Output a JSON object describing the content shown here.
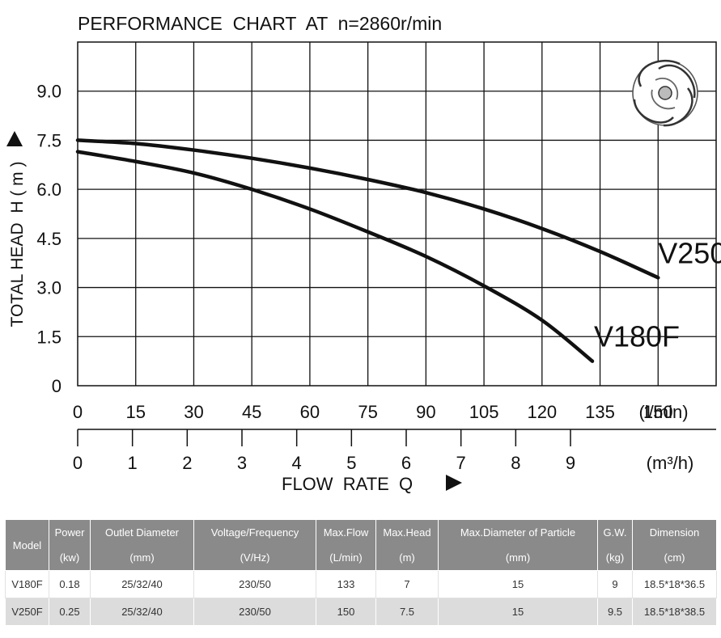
{
  "chart_data": {
    "type": "line",
    "title": "PERFORMANCE  CHART  AT  n=2860r/min",
    "ylabel": "TOTAL HEAD  H ( m )",
    "xlabel": "FLOW  RATE  Q",
    "x_unit_top": "(l/min)",
    "x_unit_bottom": "(m³/h)",
    "xlim": [
      0,
      165
    ],
    "ylim": [
      0,
      10.5
    ],
    "grid": true,
    "x_ticks_lmin": [
      {
        "value": 0,
        "label": "0"
      },
      {
        "value": 15,
        "label": "15"
      },
      {
        "value": 30,
        "label": "30"
      },
      {
        "value": 45,
        "label": "45"
      },
      {
        "value": 60,
        "label": "60"
      },
      {
        "value": 75,
        "label": "75"
      },
      {
        "value": 90,
        "label": "90"
      },
      {
        "value": 105,
        "label": "105"
      },
      {
        "value": 120,
        "label": "120"
      },
      {
        "value": 135,
        "label": "135"
      },
      {
        "value": 150,
        "label": "150"
      }
    ],
    "x_ticks_m3h": [
      {
        "value": 0,
        "label": "0"
      },
      {
        "value": 1,
        "label": "1"
      },
      {
        "value": 2,
        "label": "2"
      },
      {
        "value": 3,
        "label": "3"
      },
      {
        "value": 4,
        "label": "4"
      },
      {
        "value": 5,
        "label": "5"
      },
      {
        "value": 6,
        "label": "6"
      },
      {
        "value": 7,
        "label": "7"
      },
      {
        "value": 8,
        "label": "8"
      },
      {
        "value": 9,
        "label": "9"
      }
    ],
    "y_ticks": [
      {
        "value": 0,
        "label": "0"
      },
      {
        "value": 1.5,
        "label": "1.5"
      },
      {
        "value": 3,
        "label": "3.0"
      },
      {
        "value": 4.5,
        "label": "4.5"
      },
      {
        "value": 6,
        "label": "6.0"
      },
      {
        "value": 7.5,
        "label": "7.5"
      },
      {
        "value": 9,
        "label": "9.0"
      }
    ],
    "series": [
      {
        "name": "V250F",
        "color": "#111111",
        "x": [
          0,
          15,
          30,
          45,
          60,
          75,
          90,
          105,
          120,
          135,
          150
        ],
        "y": [
          7.5,
          7.4,
          7.2,
          6.95,
          6.65,
          6.3,
          5.9,
          5.4,
          4.8,
          4.1,
          3.3
        ]
      },
      {
        "name": "V180F",
        "color": "#111111",
        "x": [
          0,
          15,
          30,
          45,
          60,
          75,
          90,
          105,
          120,
          133
        ],
        "y": [
          7.15,
          6.85,
          6.5,
          6.0,
          5.4,
          4.7,
          3.95,
          3.05,
          2.0,
          0.75
        ]
      }
    ]
  },
  "table": {
    "headers": [
      {
        "l1": "Model",
        "l2": ""
      },
      {
        "l1": "Power",
        "l2": "(kw)"
      },
      {
        "l1": "Outlet Diameter",
        "l2": "(mm)"
      },
      {
        "l1": "Voltage/Frequency",
        "l2": "(V/Hz)"
      },
      {
        "l1": "Max.Flow",
        "l2": "(L/min)"
      },
      {
        "l1": "Max.Head",
        "l2": "(m)"
      },
      {
        "l1": "Max.Diameter of Particle",
        "l2": "(mm)"
      },
      {
        "l1": "G.W.",
        "l2": "(kg)"
      },
      {
        "l1": "Dimension",
        "l2": "(cm)"
      }
    ],
    "rows": [
      [
        "V180F",
        "0.18",
        "25/32/40",
        "230/50",
        "133",
        "7",
        "15",
        "9",
        "18.5*18*36.5"
      ],
      [
        "V250F",
        "0.25",
        "25/32/40",
        "230/50",
        "150",
        "7.5",
        "15",
        "9.5",
        "18.5*18*38.5"
      ]
    ]
  },
  "icons": {
    "impeller": "impeller-icon"
  }
}
